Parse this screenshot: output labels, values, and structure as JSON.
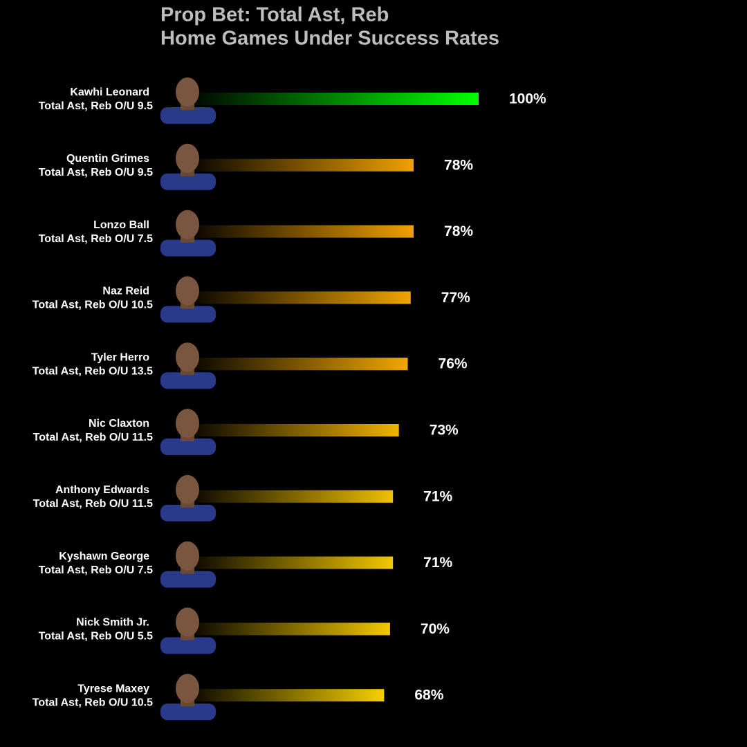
{
  "chart_data": {
    "type": "bar",
    "title": "Prop Bet: Total Ast, Reb",
    "subtitle": "Home Games Under Success Rates",
    "categories": [
      "Kawhi Leonard",
      "Quentin Grimes",
      "Lonzo Ball",
      "Naz Reid",
      "Tyler Herro",
      "Nic Claxton",
      "Anthony Edwards",
      "Kyshawn George",
      "Nick Smith Jr.",
      "Tyrese Maxey"
    ],
    "props": [
      "Total Ast, Reb O/U 9.5",
      "Total Ast, Reb O/U 9.5",
      "Total Ast, Reb O/U 7.5",
      "Total Ast, Reb O/U 10.5",
      "Total Ast, Reb O/U 13.5",
      "Total Ast, Reb O/U 11.5",
      "Total Ast, Reb O/U 11.5",
      "Total Ast, Reb O/U 7.5",
      "Total Ast, Reb O/U 5.5",
      "Total Ast, Reb O/U 10.5"
    ],
    "values": [
      100,
      78,
      78,
      77,
      76,
      73,
      71,
      71,
      70,
      68
    ],
    "value_labels": [
      "100%",
      "78%",
      "78%",
      "77%",
      "76%",
      "73%",
      "71%",
      "71%",
      "70%",
      "68%"
    ],
    "colors": [
      "#00ff00",
      "#f0a000",
      "#f0a000",
      "#f0a400",
      "#f0a800",
      "#f0b400",
      "#f0c000",
      "#f2c800",
      "#f2c800",
      "#f5d000"
    ],
    "xlim": [
      0,
      100
    ]
  }
}
